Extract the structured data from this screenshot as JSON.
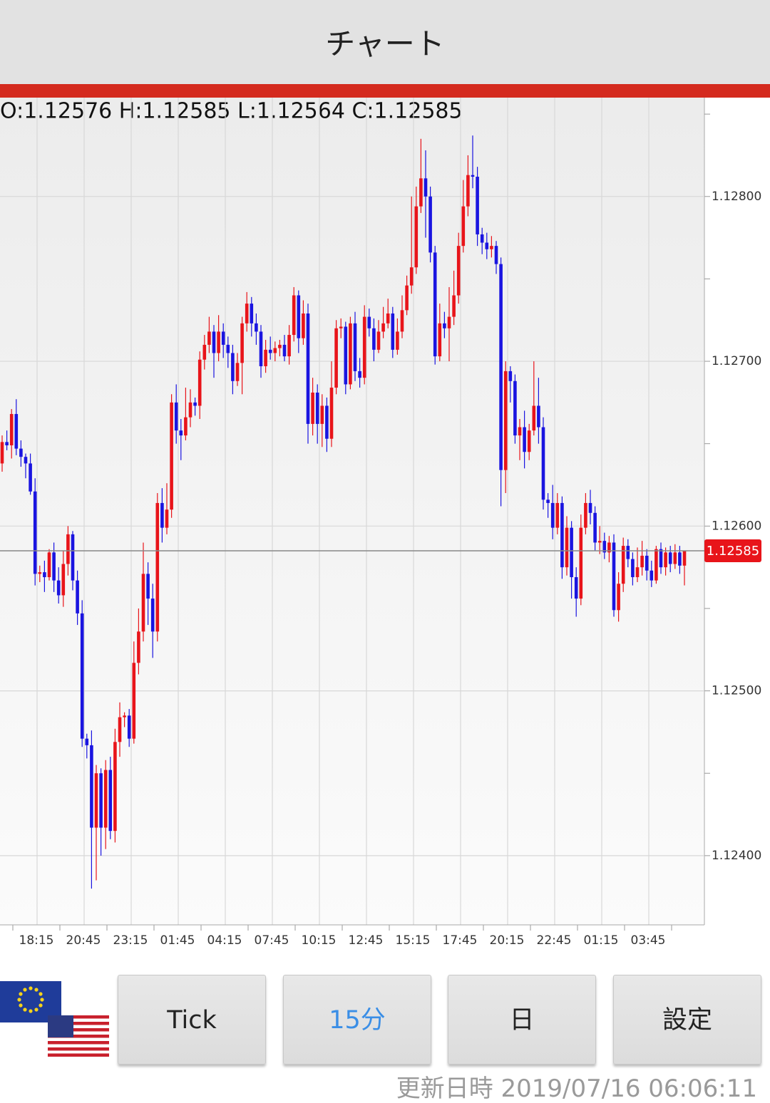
{
  "header": {
    "title": "チャート"
  },
  "chart_data": {
    "type": "candlestick",
    "info": "O:1.12576 H:1.12585 L:1.12564 C:1.12585",
    "up_color": "#e8141a",
    "down_color": "#1a14e0",
    "ylim": [
      1.12358,
      1.1286
    ],
    "yticks": [
      {
        "value": 1.124,
        "label": "1.12400"
      },
      {
        "value": 1.125,
        "label": "1.12500"
      },
      {
        "value": 1.126,
        "label": "1.12600"
      },
      {
        "value": 1.127,
        "label": "1.12700"
      },
      {
        "value": 1.128,
        "label": "1.12800"
      }
    ],
    "minor_yticks": [
      1.1245,
      1.1255,
      1.1265,
      1.1275,
      1.1285
    ],
    "grid": true,
    "x_labels": [
      "18:15",
      "20:45",
      "23:15",
      "01:45",
      "04:15",
      "07:45",
      "10:15",
      "12:45",
      "15:15",
      "17:45",
      "20:15",
      "22:45",
      "01:15",
      "03:45"
    ],
    "last_price": 1.12585,
    "open": [
      1.12638,
      1.12651,
      1.12649,
      1.12668,
      1.12647,
      1.12642,
      1.12638,
      1.12621,
      1.12571,
      1.12572,
      1.12569,
      1.12584,
      1.12567,
      1.12558,
      1.12577,
      1.12595,
      1.12567,
      1.12547,
      1.12471,
      1.12467,
      1.12417,
      1.1245,
      1.12417,
      1.12452,
      1.12415,
      1.12469,
      1.12484,
      1.12485,
      1.12471,
      1.12517,
      1.12536,
      1.12571,
      1.12556,
      1.12536,
      1.12614,
      1.12599,
      1.1261,
      1.12675,
      1.12658,
      1.12655,
      1.12666,
      1.12675,
      1.12673,
      1.12701,
      1.1271,
      1.12718,
      1.12705,
      1.12718,
      1.1271,
      1.12705,
      1.12688,
      1.12699,
      1.12723,
      1.12735,
      1.12723,
      1.12718,
      1.12697,
      1.12707,
      1.12705,
      1.12708,
      1.1271,
      1.12703,
      1.12716,
      1.1274,
      1.12714,
      1.12729,
      1.12662,
      1.12681,
      1.12662,
      1.12673,
      1.12653,
      1.12684,
      1.1272,
      1.12721,
      1.12686,
      1.12723,
      1.12694,
      1.1269,
      1.12727,
      1.1272,
      1.12707,
      1.12718,
      1.12723,
      1.12729,
      1.12707,
      1.12718,
      1.12731,
      1.12746,
      1.12757,
      1.12794,
      1.12811,
      1.128,
      1.12766,
      1.12703,
      1.12723,
      1.1272,
      1.12727,
      1.1274,
      1.1277,
      1.12794,
      1.12813,
      1.12812,
      1.12777,
      1.12772,
      1.12768,
      1.1277,
      1.12759,
      1.12634,
      1.12694,
      1.12688,
      1.12655,
      1.1266,
      1.12645,
      1.12658,
      1.12673,
      1.1266,
      1.12616,
      1.12614,
      1.12599,
      1.12614,
      1.12575,
      1.12599,
      1.12569,
      1.12556,
      1.12599,
      1.12614,
      1.12608,
      1.1259,
      1.12591,
      1.12584,
      1.1259,
      1.12549,
      1.12565,
      1.12588,
      1.1258,
      1.12569,
      1.12575,
      1.12582,
      1.12573,
      1.12567,
      1.12586,
      1.12575,
      1.12584,
      1.12577,
      1.12584,
      1.12576
    ],
    "high": [
      1.12655,
      1.12658,
      1.12671,
      1.12677,
      1.12652,
      1.12644,
      1.12644,
      1.12629,
      1.12576,
      1.12579,
      1.12586,
      1.1259,
      1.12575,
      1.12585,
      1.126,
      1.12597,
      1.12573,
      1.12555,
      1.12474,
      1.12476,
      1.12455,
      1.12453,
      1.12458,
      1.1246,
      1.12477,
      1.12493,
      1.12487,
      1.12489,
      1.1253,
      1.1255,
      1.1259,
      1.12578,
      1.12565,
      1.1262,
      1.12623,
      1.12626,
      1.1268,
      1.12686,
      1.12665,
      1.12684,
      1.12683,
      1.12678,
      1.12706,
      1.12716,
      1.12727,
      1.12722,
      1.12728,
      1.12723,
      1.12715,
      1.1271,
      1.12705,
      1.12727,
      1.12742,
      1.12739,
      1.12729,
      1.12722,
      1.12713,
      1.12715,
      1.12712,
      1.12713,
      1.12716,
      1.12722,
      1.12745,
      1.12743,
      1.12737,
      1.12735,
      1.1269,
      1.12686,
      1.1268,
      1.12678,
      1.127,
      1.12725,
      1.12726,
      1.12724,
      1.12727,
      1.1273,
      1.12702,
      1.12734,
      1.12732,
      1.12726,
      1.12725,
      1.12733,
      1.12738,
      1.12733,
      1.12726,
      1.1274,
      1.12752,
      1.128,
      1.12806,
      1.12835,
      1.12828,
      1.12806,
      1.1277,
      1.12735,
      1.1273,
      1.12745,
      1.12755,
      1.12778,
      1.1281,
      1.12825,
      1.12837,
      1.12818,
      1.12781,
      1.12778,
      1.12776,
      1.12773,
      1.12763,
      1.127,
      1.12697,
      1.12692,
      1.12665,
      1.1267,
      1.12662,
      1.127,
      1.1269,
      1.12666,
      1.1262,
      1.12625,
      1.1262,
      1.12618,
      1.12606,
      1.12603,
      1.12575,
      1.12607,
      1.1262,
      1.12622,
      1.12612,
      1.126,
      1.12596,
      1.12594,
      1.12595,
      1.12572,
      1.12593,
      1.12592,
      1.12584,
      1.12587,
      1.12591,
      1.12586,
      1.12579,
      1.12588,
      1.1259,
      1.12587,
      1.12588,
      1.12589,
      1.12588,
      1.12585
    ],
    "low": [
      1.12633,
      1.12646,
      1.12641,
      1.12643,
      1.12636,
      1.12629,
      1.12619,
      1.12564,
      1.12566,
      1.1256,
      1.12567,
      1.1256,
      1.12553,
      1.12551,
      1.1257,
      1.12561,
      1.1254,
      1.12466,
      1.12459,
      1.1238,
      1.12385,
      1.124,
      1.12404,
      1.1241,
      1.12408,
      1.1246,
      1.12478,
      1.12466,
      1.12468,
      1.1251,
      1.1253,
      1.1254,
      1.1252,
      1.1253,
      1.1259,
      1.12595,
      1.12605,
      1.1265,
      1.1264,
      1.12652,
      1.1266,
      1.12667,
      1.12665,
      1.12695,
      1.12705,
      1.1269,
      1.127,
      1.12702,
      1.12696,
      1.1268,
      1.12685,
      1.1268,
      1.12718,
      1.12715,
      1.1271,
      1.1269,
      1.12693,
      1.12701,
      1.127,
      1.12703,
      1.127,
      1.12698,
      1.12712,
      1.12705,
      1.1271,
      1.1265,
      1.12655,
      1.1265,
      1.12648,
      1.12645,
      1.12648,
      1.1268,
      1.12714,
      1.1268,
      1.12683,
      1.12688,
      1.12684,
      1.12686,
      1.12715,
      1.127,
      1.12705,
      1.12714,
      1.1272,
      1.12702,
      1.12704,
      1.12714,
      1.12728,
      1.12741,
      1.12753,
      1.1279,
      1.12775,
      1.1276,
      1.12698,
      1.127,
      1.12714,
      1.127,
      1.12722,
      1.12735,
      1.12766,
      1.12788,
      1.12805,
      1.1277,
      1.12765,
      1.12762,
      1.12763,
      1.12753,
      1.12612,
      1.1262,
      1.12675,
      1.1265,
      1.1264,
      1.12635,
      1.1264,
      1.12655,
      1.1265,
      1.1261,
      1.12605,
      1.12592,
      1.12595,
      1.12568,
      1.1257,
      1.12556,
      1.12545,
      1.12552,
      1.12595,
      1.12601,
      1.12585,
      1.12583,
      1.1258,
      1.12578,
      1.12545,
      1.12542,
      1.1256,
      1.12575,
      1.12564,
      1.12566,
      1.1257,
      1.12567,
      1.12563,
      1.12565,
      1.12571,
      1.1257,
      1.12572,
      1.12574,
      1.12571,
      1.12564
    ],
    "close": [
      1.12651,
      1.12649,
      1.12668,
      1.12647,
      1.12642,
      1.12638,
      1.12621,
      1.12571,
      1.12572,
      1.12569,
      1.12584,
      1.12567,
      1.12558,
      1.12577,
      1.12595,
      1.12567,
      1.12547,
      1.12471,
      1.12467,
      1.12417,
      1.1245,
      1.12417,
      1.12452,
      1.12415,
      1.12469,
      1.12484,
      1.12485,
      1.12471,
      1.12517,
      1.12536,
      1.12571,
      1.12556,
      1.12536,
      1.12614,
      1.12599,
      1.1261,
      1.12675,
      1.12658,
      1.12655,
      1.12666,
      1.12675,
      1.12673,
      1.12701,
      1.1271,
      1.12718,
      1.12705,
      1.12718,
      1.1271,
      1.12705,
      1.12688,
      1.12699,
      1.12723,
      1.12735,
      1.12723,
      1.12718,
      1.12697,
      1.12707,
      1.12705,
      1.12708,
      1.1271,
      1.12703,
      1.12716,
      1.1274,
      1.12714,
      1.12729,
      1.12662,
      1.12681,
      1.12662,
      1.12673,
      1.12653,
      1.12684,
      1.1272,
      1.12721,
      1.12686,
      1.12723,
      1.12694,
      1.1269,
      1.12727,
      1.1272,
      1.12707,
      1.12718,
      1.12723,
      1.12729,
      1.12707,
      1.12718,
      1.12731,
      1.12746,
      1.12757,
      1.12794,
      1.12811,
      1.128,
      1.12766,
      1.12703,
      1.12723,
      1.1272,
      1.12727,
      1.1274,
      1.1277,
      1.12794,
      1.12813,
      1.12812,
      1.12777,
      1.12772,
      1.12768,
      1.1277,
      1.12759,
      1.12634,
      1.12694,
      1.12688,
      1.12655,
      1.1266,
      1.12645,
      1.12658,
      1.12673,
      1.1266,
      1.12616,
      1.12614,
      1.12599,
      1.12614,
      1.12575,
      1.12599,
      1.12569,
      1.12556,
      1.12599,
      1.12614,
      1.12608,
      1.1259,
      1.12591,
      1.12584,
      1.1259,
      1.12549,
      1.12565,
      1.12588,
      1.1258,
      1.12569,
      1.12575,
      1.12582,
      1.12573,
      1.12567,
      1.12586,
      1.12575,
      1.12584,
      1.12577,
      1.12584,
      1.12576,
      1.12585
    ]
  },
  "buttons": [
    {
      "label": "Tick",
      "selected": false
    },
    {
      "label": "15分",
      "selected": true
    },
    {
      "label": "日",
      "selected": false
    },
    {
      "label": "設定",
      "selected": false
    }
  ],
  "footer": {
    "label": "更新日時",
    "timestamp": "2019/07/16 06:06:11"
  }
}
